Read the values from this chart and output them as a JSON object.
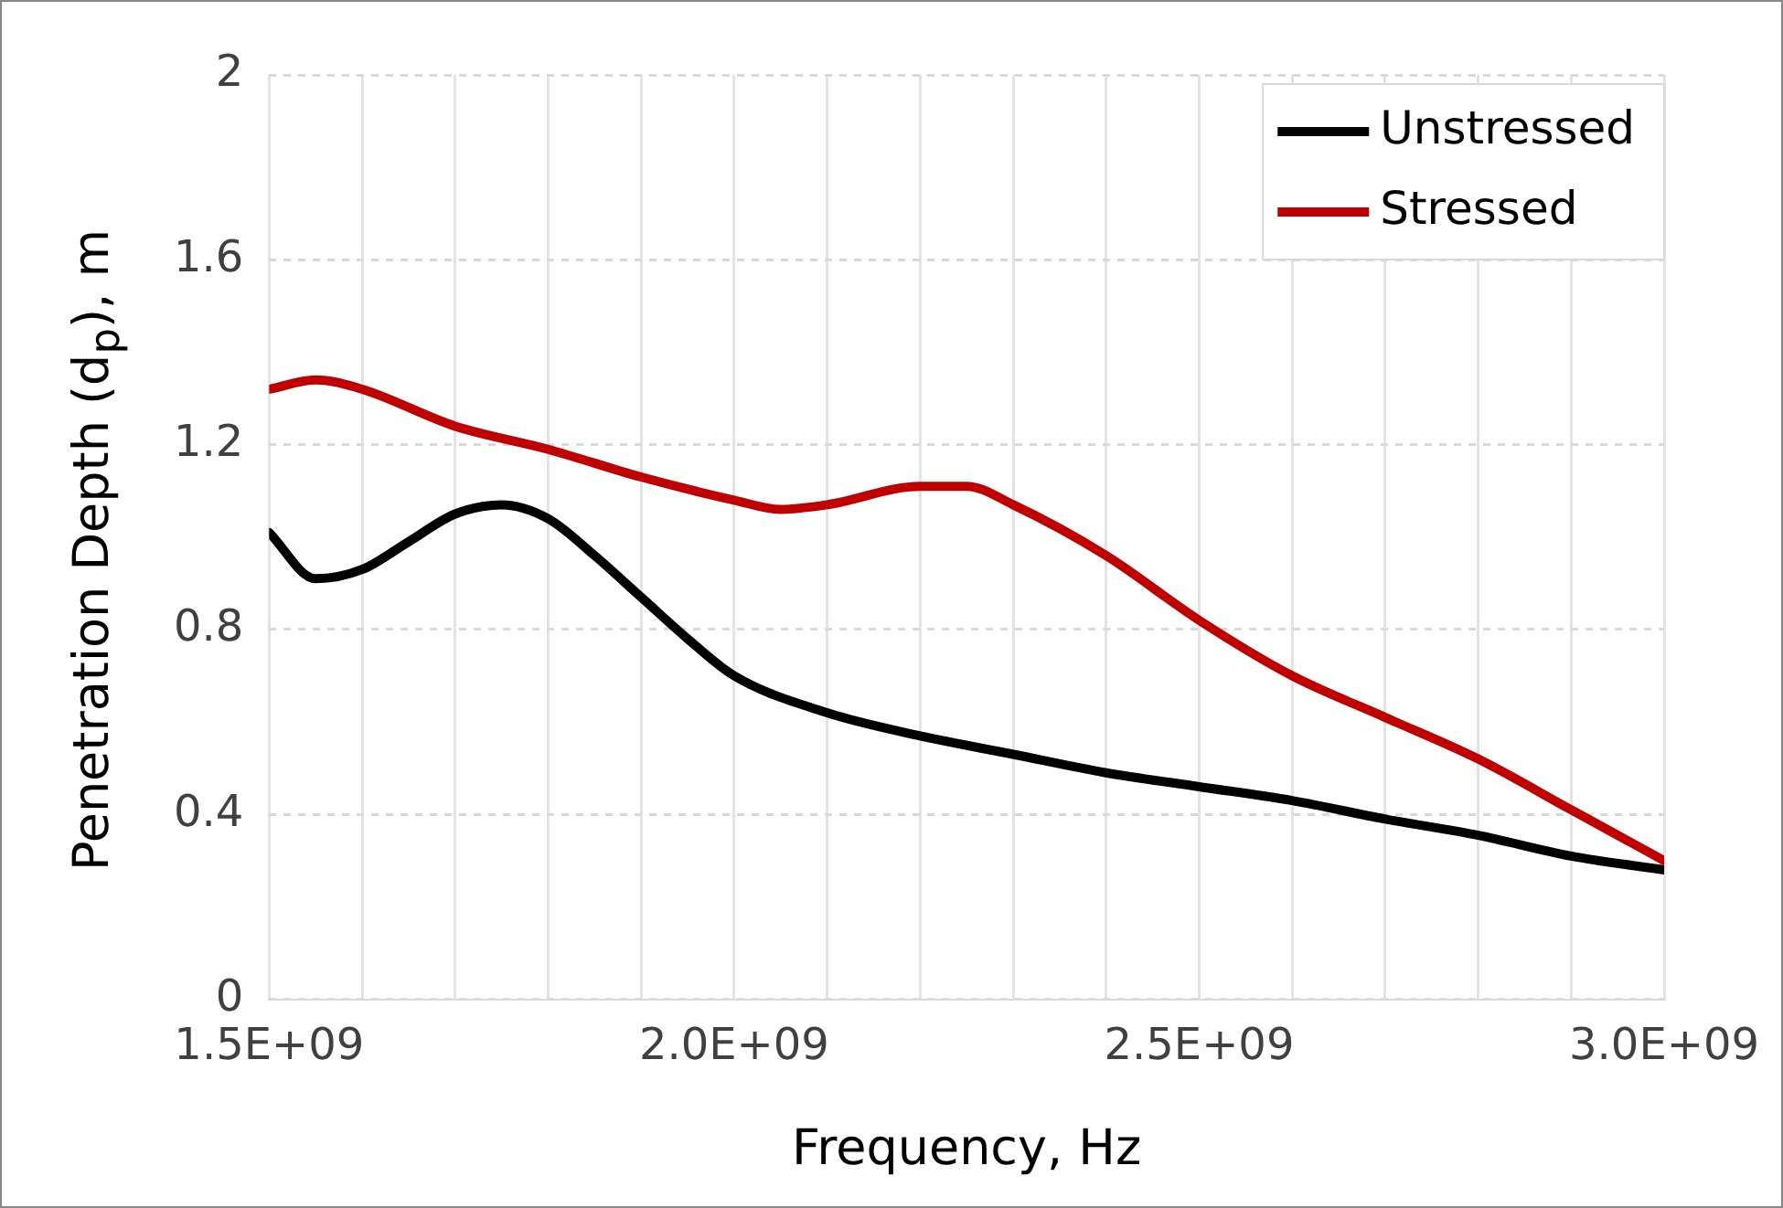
{
  "chart_data": {
    "type": "line",
    "xlabel": "Frequency, Hz",
    "ylabel": "Penetration Depth (d$_{p}$), m",
    "xlim": [
      1500000000,
      3000000000
    ],
    "xticks": [
      {
        "value": 1500000000,
        "label": "1.5E+09"
      },
      {
        "value": 1600000000,
        "label": null
      },
      {
        "value": 1700000000,
        "label": null
      },
      {
        "value": 1800000000,
        "label": null
      },
      {
        "value": 1900000000,
        "label": null
      },
      {
        "value": 2000000000,
        "label": "2.0E+09"
      },
      {
        "value": 2100000000,
        "label": null
      },
      {
        "value": 2200000000,
        "label": null
      },
      {
        "value": 2300000000,
        "label": null
      },
      {
        "value": 2400000000,
        "label": null
      },
      {
        "value": 2500000000,
        "label": "2.5E+09"
      },
      {
        "value": 2600000000,
        "label": null
      },
      {
        "value": 2700000000,
        "label": null
      },
      {
        "value": 2800000000,
        "label": null
      },
      {
        "value": 2900000000,
        "label": null
      },
      {
        "value": 3000000000,
        "label": "3.0E+09"
      }
    ],
    "ylim": [
      0,
      2
    ],
    "yticks": [
      0,
      0.4,
      0.8,
      1.2,
      1.6,
      2
    ],
    "grid": true,
    "legend": "top right",
    "marker": "none",
    "line_style": "solid",
    "series": [
      {
        "name": "Unstressed",
        "color": "#000000",
        "x": [
          1500000000,
          1550000000,
          1600000000,
          1650000000,
          1700000000,
          1750000000,
          1800000000,
          1850000000,
          1900000000,
          1950000000,
          2000000000,
          2100000000,
          2200000000,
          2300000000,
          2400000000,
          2500000000,
          2600000000,
          2700000000,
          2800000000,
          2900000000,
          3000000000
        ],
        "values": [
          1.01,
          0.91,
          0.93,
          0.99,
          1.05,
          1.07,
          1.04,
          0.96,
          0.87,
          0.78,
          0.7,
          0.62,
          0.57,
          0.53,
          0.49,
          0.46,
          0.43,
          0.39,
          0.355,
          0.31,
          0.28
        ]
      },
      {
        "name": "Stressed",
        "color": "#c00000",
        "x": [
          1500000000,
          1550000000,
          1600000000,
          1700000000,
          1800000000,
          1900000000,
          2000000000,
          2050000000,
          2100000000,
          2200000000,
          2250000000,
          2300000000,
          2400000000,
          2500000000,
          2600000000,
          2700000000,
          2800000000,
          2900000000,
          3000000000
        ],
        "values": [
          1.32,
          1.34,
          1.32,
          1.24,
          1.19,
          1.13,
          1.08,
          1.06,
          1.07,
          1.11,
          1.11,
          1.07,
          0.96,
          0.82,
          0.7,
          0.61,
          0.52,
          0.41,
          0.3
        ]
      }
    ]
  }
}
